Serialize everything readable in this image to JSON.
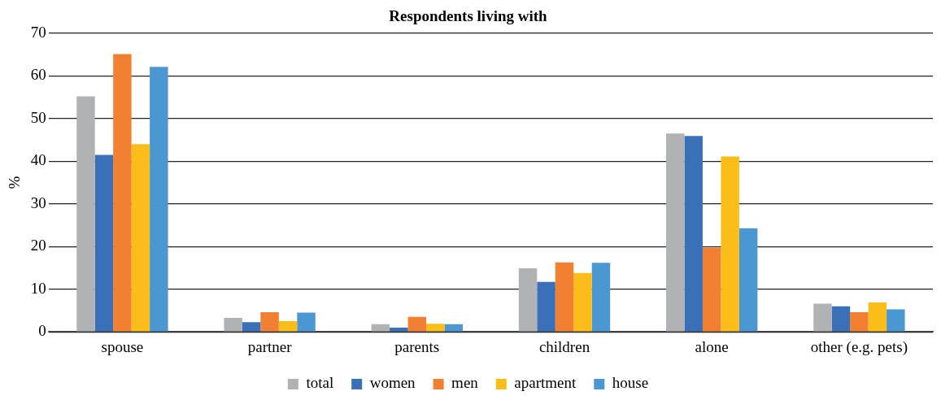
{
  "chart_data": {
    "type": "bar",
    "title": "Respondents living with",
    "ylabel": "%",
    "categories": [
      "spouse",
      "partner",
      "parents",
      "children",
      "alone",
      "other (e.g. pets)"
    ],
    "series": [
      {
        "name": "total",
        "color": "#b1b2b4",
        "values": [
          55.2,
          3.3,
          1.8,
          14.9,
          46.5,
          6.6
        ]
      },
      {
        "name": "women",
        "color": "#3a70b8",
        "values": [
          41.5,
          2.3,
          1.0,
          11.7,
          45.9,
          6.0
        ]
      },
      {
        "name": "men",
        "color": "#f28033",
        "values": [
          65.1,
          4.6,
          3.5,
          16.3,
          19.7,
          4.6
        ]
      },
      {
        "name": "apartment",
        "color": "#fbbd19",
        "values": [
          44.0,
          2.5,
          1.9,
          13.8,
          41.1,
          6.9
        ]
      },
      {
        "name": "house",
        "color": "#4b97d2",
        "values": [
          62.1,
          4.5,
          1.8,
          16.2,
          24.3,
          5.3
        ]
      }
    ],
    "ylim": [
      0,
      70
    ],
    "yticks": [
      0,
      10,
      20,
      30,
      40,
      50,
      60,
      70
    ],
    "grid": "y",
    "legend": "bottom"
  }
}
